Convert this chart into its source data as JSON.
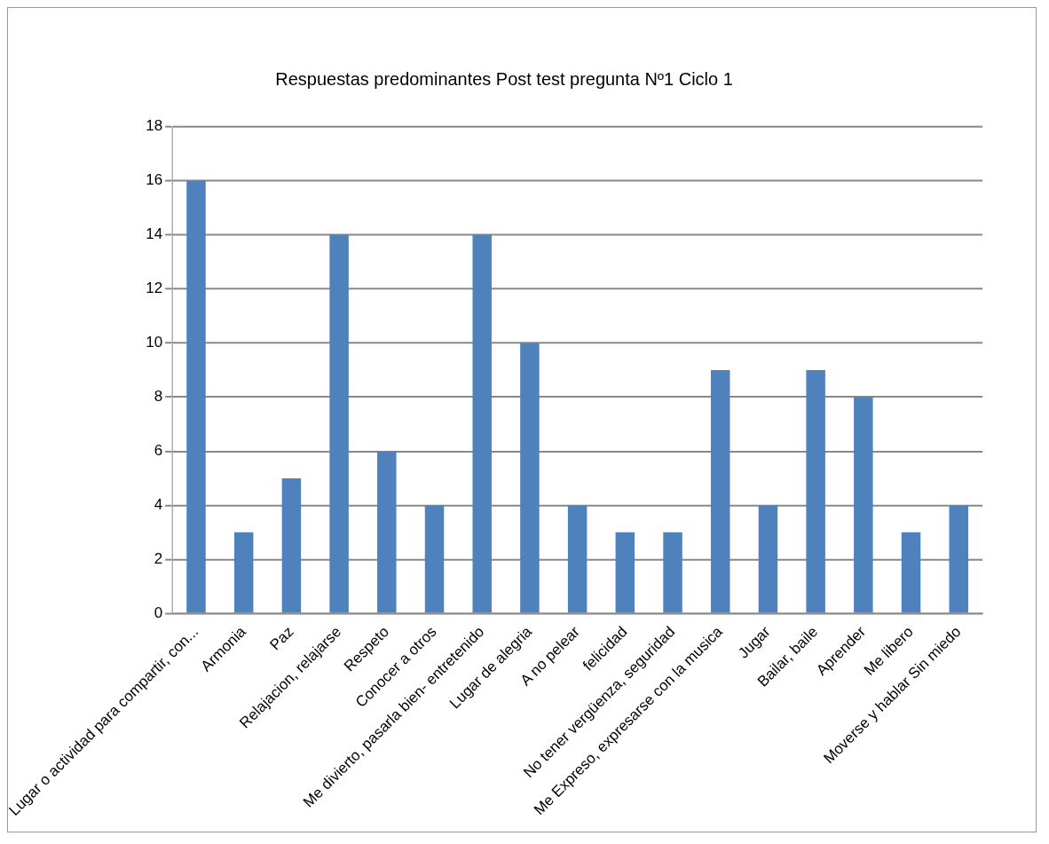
{
  "chart_data": {
    "type": "bar",
    "title": "Respuestas predominantes Post test pregunta Nº1 Ciclo 1",
    "categories": [
      "Lugar o actividad para compartir, con...",
      "Armonia",
      "Paz",
      "Relajacion, relajarse",
      "Respeto",
      "Conocer a otros",
      "Me divierto, pasarla bien- entretenido",
      "Lugar de alegria",
      "A no pelear",
      "felicidad",
      "No tener vergüenza, seguridad",
      "Me Expreso, expresarse con la musica",
      "Jugar",
      "Bailar, baile",
      "Aprender",
      "Me libero",
      "Moverse y hablar Sin miedo"
    ],
    "values": [
      16,
      3,
      5,
      14,
      6,
      4,
      14,
      10,
      4,
      3,
      3,
      9,
      4,
      9,
      8,
      3,
      4
    ],
    "color": "#4f81bd",
    "ylim": [
      0,
      18
    ],
    "yticks": [
      0,
      2,
      4,
      6,
      8,
      10,
      12,
      14,
      16,
      18
    ],
    "grid": "y"
  }
}
